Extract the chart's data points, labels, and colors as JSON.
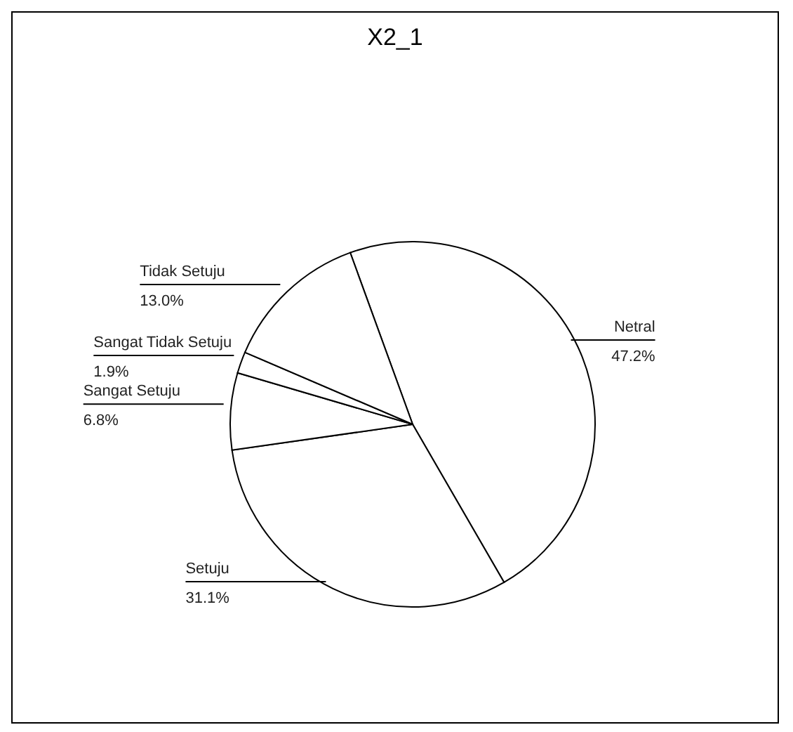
{
  "chart_data": {
    "type": "pie",
    "title": "X2_1",
    "categories": [
      "Netral",
      "Setuju",
      "Sangat Setuju",
      "Sangat Tidak Setuju",
      "Tidak Setuju"
    ],
    "values": [
      47.2,
      31.1,
      6.8,
      1.9,
      13.0
    ],
    "value_labels": [
      "47.2%",
      "31.1%",
      "6.8%",
      "1.9%",
      "13.0%"
    ],
    "colors": [
      "#ffffff",
      "#ffffff",
      "#ffffff",
      "#ffffff",
      "#ffffff"
    ],
    "legend": false
  }
}
